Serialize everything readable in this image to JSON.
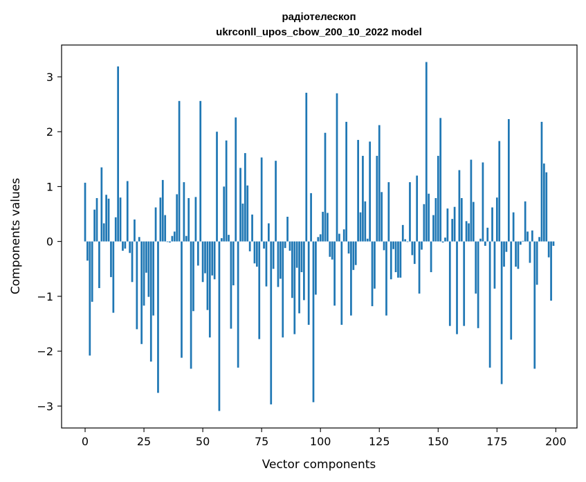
{
  "chart_data": {
    "type": "bar",
    "title_line1": "радіотелескоп",
    "title_line2": "ukrconll_upos_cbow_200_10_2022 model",
    "xlabel": "Vector components",
    "ylabel": "Components values",
    "xlim": [
      -10,
      209
    ],
    "ylim": [
      -3.4,
      3.58
    ],
    "xticks": [
      0,
      25,
      50,
      75,
      100,
      125,
      150,
      175,
      200
    ],
    "xtick_labels": [
      "0",
      "25",
      "50",
      "75",
      "100",
      "125",
      "150",
      "175",
      "200"
    ],
    "yticks": [
      -3,
      -2,
      -1,
      0,
      1,
      2,
      3
    ],
    "ytick_labels": [
      "−3",
      "−2",
      "−1",
      "0",
      "1",
      "2",
      "3"
    ],
    "grid": false,
    "bar_color": "#1f77b4",
    "x": [
      0,
      1,
      2,
      3,
      4,
      5,
      6,
      7,
      8,
      9,
      10,
      11,
      12,
      13,
      14,
      15,
      16,
      17,
      18,
      19,
      20,
      21,
      22,
      23,
      24,
      25,
      26,
      27,
      28,
      29,
      30,
      31,
      32,
      33,
      34,
      35,
      36,
      37,
      38,
      39,
      40,
      41,
      42,
      43,
      44,
      45,
      46,
      47,
      48,
      49,
      50,
      51,
      52,
      53,
      54,
      55,
      56,
      57,
      58,
      59,
      60,
      61,
      62,
      63,
      64,
      65,
      66,
      67,
      68,
      69,
      70,
      71,
      72,
      73,
      74,
      75,
      76,
      77,
      78,
      79,
      80,
      81,
      82,
      83,
      84,
      85,
      86,
      87,
      88,
      89,
      90,
      91,
      92,
      93,
      94,
      95,
      96,
      97,
      98,
      99,
      100,
      101,
      102,
      103,
      104,
      105,
      106,
      107,
      108,
      109,
      110,
      111,
      112,
      113,
      114,
      115,
      116,
      117,
      118,
      119,
      120,
      121,
      122,
      123,
      124,
      125,
      126,
      127,
      128,
      129,
      130,
      131,
      132,
      133,
      134,
      135,
      136,
      137,
      138,
      139,
      140,
      141,
      142,
      143,
      144,
      145,
      146,
      147,
      148,
      149,
      150,
      151,
      152,
      153,
      154,
      155,
      156,
      157,
      158,
      159,
      160,
      161,
      162,
      163,
      164,
      165,
      166,
      167,
      168,
      169,
      170,
      171,
      172,
      173,
      174,
      175,
      176,
      177,
      178,
      179,
      180,
      181,
      182,
      183,
      184,
      185,
      186,
      187,
      188,
      189,
      190,
      191,
      192,
      193,
      194,
      195,
      196,
      197,
      198,
      199
    ],
    "values": [
      1.07,
      -0.35,
      -2.08,
      -1.1,
      0.58,
      0.79,
      -0.85,
      1.35,
      0.33,
      0.85,
      0.78,
      -0.65,
      -1.3,
      0.44,
      3.19,
      0.8,
      -0.17,
      -0.13,
      1.1,
      -0.21,
      -0.74,
      0.4,
      -1.6,
      0.08,
      -1.87,
      -1.17,
      -0.57,
      -1.01,
      -2.19,
      -1.35,
      0.62,
      -2.76,
      0.8,
      1.12,
      0.48,
      -0.01,
      -0.02,
      0.1,
      0.18,
      0.86,
      2.56,
      -2.12,
      1.08,
      0.1,
      0.79,
      -2.32,
      -1.27,
      0.81,
      -0.44,
      2.56,
      -0.74,
      -0.58,
      -1.25,
      -1.75,
      -0.62,
      -0.69,
      2.0,
      -3.09,
      0.06,
      1.0,
      1.84,
      0.12,
      -1.59,
      -0.8,
      2.26,
      -2.3,
      1.34,
      0.69,
      1.61,
      1.02,
      -0.18,
      0.49,
      -0.4,
      -0.46,
      -1.78,
      1.53,
      -0.13,
      -0.82,
      0.33,
      -2.97,
      -0.5,
      1.47,
      -0.83,
      -0.68,
      -1.75,
      -0.12,
      0.45,
      -0.17,
      -1.03,
      -1.69,
      -0.48,
      -1.31,
      -0.56,
      -1.07,
      2.71,
      -1.52,
      0.88,
      -2.93,
      -0.97,
      0.08,
      0.13,
      0.54,
      1.98,
      0.52,
      -0.28,
      -0.33,
      -1.17,
      2.7,
      0.14,
      -1.52,
      0.22,
      2.18,
      -0.22,
      -1.35,
      -0.52,
      -0.43,
      1.85,
      0.53,
      1.56,
      0.73,
      0.05,
      1.82,
      -1.18,
      -0.86,
      1.56,
      2.12,
      0.9,
      -0.16,
      -1.35,
      1.08,
      -0.69,
      -0.14,
      -0.56,
      -0.66,
      -0.66,
      0.3,
      0.04,
      -0.01,
      1.08,
      -0.25,
      -0.41,
      1.2,
      -0.95,
      -0.15,
      0.68,
      3.27,
      0.87,
      -0.56,
      0.48,
      0.79,
      1.56,
      2.25,
      -0.02,
      0.07,
      0.6,
      -1.54,
      0.41,
      0.63,
      -1.69,
      1.3,
      0.79,
      -1.54,
      0.37,
      0.33,
      1.49,
      0.72,
      -0.95,
      -1.58,
      0.05,
      1.44,
      -0.08,
      0.25,
      -2.3,
      0.62,
      -0.86,
      0.8,
      1.83,
      -2.6,
      -0.46,
      -0.19,
      2.23,
      -1.79,
      0.53,
      -0.46,
      -0.5,
      -0.06,
      0.01,
      0.73,
      0.18,
      -0.39,
      0.2,
      -2.32,
      -0.79,
      0.08,
      2.18,
      1.42,
      1.26,
      -0.29,
      -1.08,
      -0.08
    ]
  }
}
